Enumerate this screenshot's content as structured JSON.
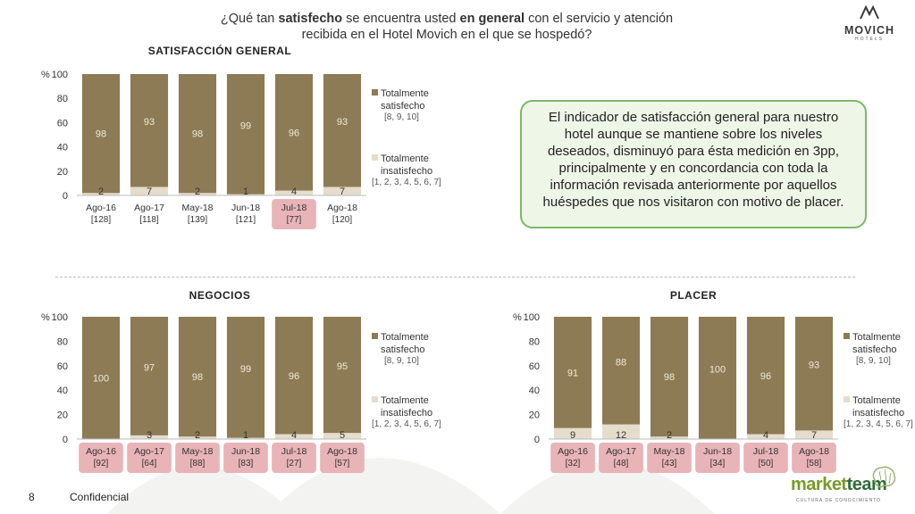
{
  "header": {
    "title_parts": [
      {
        "text": "¿Qué tan ",
        "bold": false
      },
      {
        "text": "satisfecho",
        "bold": true
      },
      {
        "text": " se encuentra usted ",
        "bold": false
      },
      {
        "text": "en general",
        "bold": true
      },
      {
        "text": " con el servicio y atención recibida en el Hotel Movich en el que se hospedó?",
        "bold": false
      }
    ]
  },
  "logo": {
    "brand": "MOVICH",
    "sub": "HOTELS"
  },
  "note": {
    "text": "El indicador de satisfacción general para nuestro hotel aunque se mantiene sobre los niveles deseados, disminuyó para ésta medición en 3pp, principalmente y en concordancia con toda la información revisada anteriormente por aquellos huéspedes que nos visitaron con motivo de placer."
  },
  "footer": {
    "page": "8",
    "label": "Confidencial",
    "brand_a": "market",
    "brand_b": "team",
    "brand_tag": "CULTURA DE CONOCIMIENTO"
  },
  "colors": {
    "satisfied": "#8c7b55",
    "dissatisfied": "#e6dccb",
    "highlight": "#e8b4b8",
    "note_border": "#7db86a"
  },
  "chart_data": [
    {
      "type": "bar",
      "stacked": true,
      "title": "SATISFACCIÓN GENERAL",
      "ylabel": "%",
      "ylim": [
        0,
        100
      ],
      "yticks": [
        0,
        20,
        40,
        60,
        80,
        100
      ],
      "categories": [
        "Ago-16",
        "Ago-17",
        "May-18",
        "Jun-18",
        "Jul-18",
        "Ago-18"
      ],
      "bases": [
        "[128]",
        "[118]",
        "[139]",
        "[121]",
        "[77]",
        "[120]"
      ],
      "highlighted": [
        "Jul-18"
      ],
      "series": [
        {
          "name": "Totalmente satisfecho",
          "note": "[8, 9, 10]",
          "color": "#8c7b55",
          "values": [
            98,
            93,
            98,
            99,
            96,
            93
          ]
        },
        {
          "name": "Totalmente insatisfecho",
          "note": "[1, 2, 3, 4, 5, 6, 7]",
          "color": "#e6dccb",
          "values": [
            2,
            7,
            2,
            1,
            4,
            7
          ]
        }
      ]
    },
    {
      "type": "bar",
      "stacked": true,
      "title": "NEGOCIOS",
      "ylabel": "%",
      "ylim": [
        0,
        100
      ],
      "yticks": [
        0,
        20,
        40,
        60,
        80,
        100
      ],
      "categories": [
        "Ago-16",
        "Ago-17",
        "May-18",
        "Jun-18",
        "Jul-18",
        "Ago-18"
      ],
      "bases": [
        "[92]",
        "[64]",
        "[88]",
        "[83]",
        "[27]",
        "[57]"
      ],
      "highlighted": [
        "Ago-16",
        "Ago-17",
        "May-18",
        "Jun-18",
        "Jul-18",
        "Ago-18"
      ],
      "series": [
        {
          "name": "Totalmente satisfecho",
          "note": "[8, 9, 10]",
          "color": "#8c7b55",
          "values": [
            100,
            97,
            98,
            99,
            96,
            95
          ]
        },
        {
          "name": "Totalmente insatisfecho",
          "note": "[1, 2, 3, 4, 5, 6, 7]",
          "color": "#e6dccb",
          "values": [
            null,
            3,
            2,
            1,
            4,
            5
          ]
        }
      ]
    },
    {
      "type": "bar",
      "stacked": true,
      "title": "PLACER",
      "ylabel": "%",
      "ylim": [
        0,
        100
      ],
      "yticks": [
        0,
        20,
        40,
        60,
        80,
        100
      ],
      "categories": [
        "Ago-16",
        "Ago-17",
        "May-18",
        "Jun-18",
        "Jul-18",
        "Ago-18"
      ],
      "bases": [
        "[32]",
        "[48]",
        "[43]",
        "[34]",
        "[50]",
        "[58]"
      ],
      "highlighted": [
        "Ago-16",
        "Ago-17",
        "May-18",
        "Jun-18",
        "Jul-18",
        "Ago-18"
      ],
      "series": [
        {
          "name": "Totalmente satisfecho",
          "note": "[8, 9, 10]",
          "color": "#8c7b55",
          "values": [
            91,
            88,
            98,
            100,
            96,
            93
          ]
        },
        {
          "name": "Totalmente insatisfecho",
          "note": "[1, 2, 3, 4, 5, 6, 7]",
          "color": "#e6dccb",
          "values": [
            9,
            12,
            2,
            null,
            4,
            7
          ]
        }
      ]
    }
  ]
}
